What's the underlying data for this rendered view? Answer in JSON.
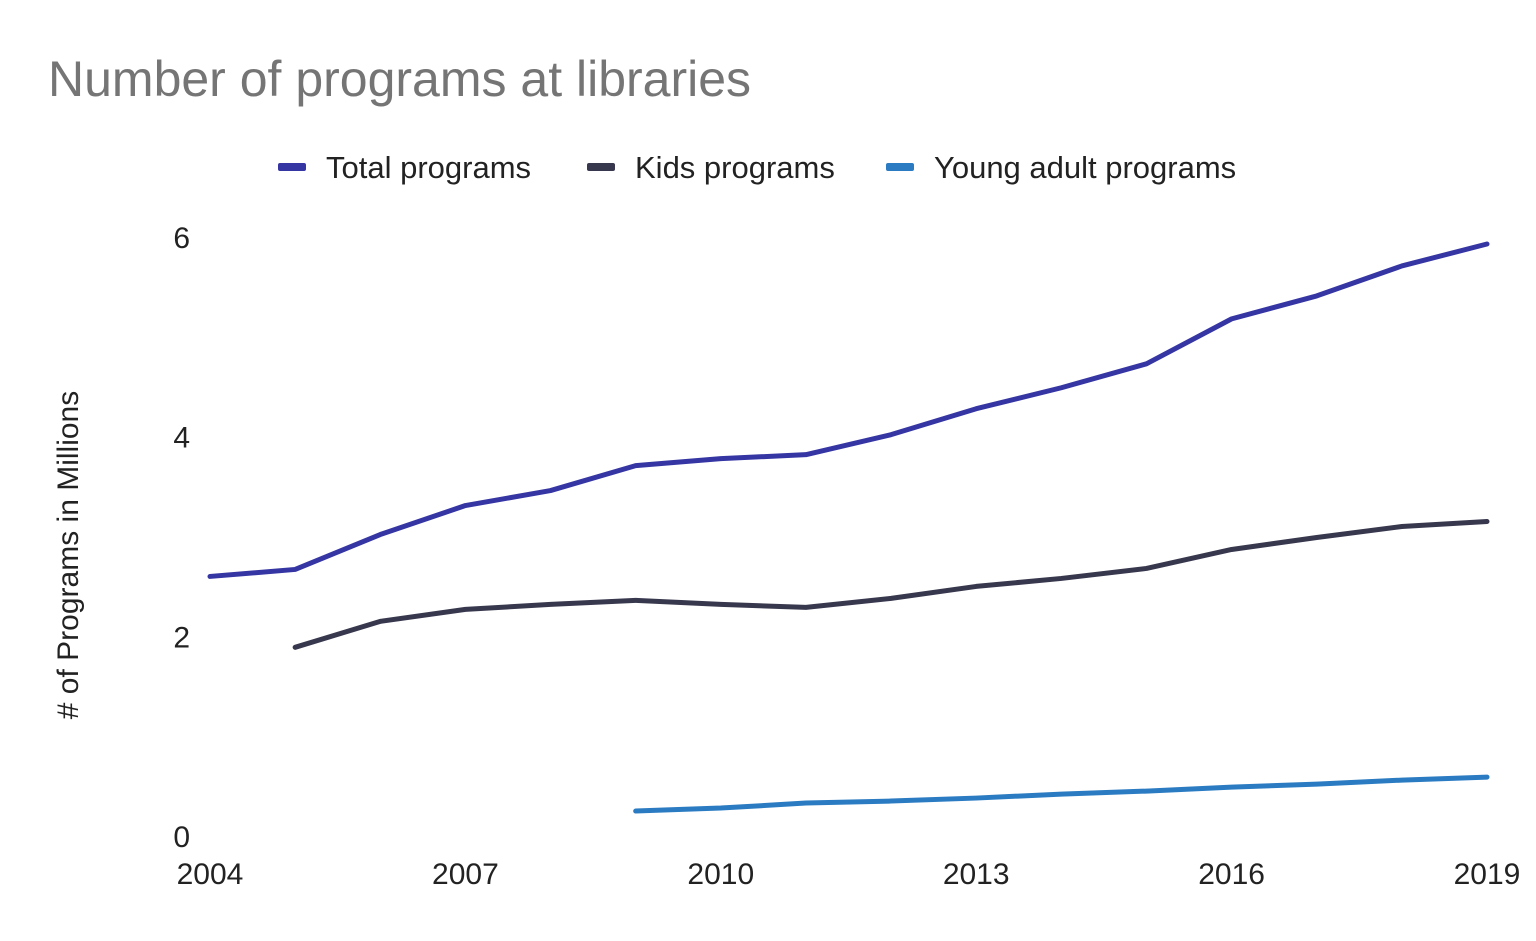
{
  "chart_data": {
    "type": "line",
    "title": "Number of programs at libraries",
    "xlabel": "",
    "ylabel": "# of Programs in Millions",
    "xlim": [
      2004,
      2019
    ],
    "ylim": [
      0,
      6
    ],
    "x_ticks": [
      2004,
      2007,
      2010,
      2013,
      2016,
      2019
    ],
    "y_ticks": [
      0,
      2,
      4,
      6
    ],
    "grid": false,
    "legend_position": "top",
    "series": [
      {
        "name": "Total programs",
        "color": "#3535a3",
        "x": [
          2004,
          2005,
          2006,
          2007,
          2008,
          2009,
          2010,
          2011,
          2012,
          2013,
          2014,
          2015,
          2016,
          2017,
          2018,
          2019
        ],
        "values": [
          2.6,
          2.67,
          3.02,
          3.31,
          3.46,
          3.71,
          3.78,
          3.82,
          4.02,
          4.28,
          4.49,
          4.73,
          5.18,
          5.41,
          5.71,
          5.93
        ]
      },
      {
        "name": "Kids programs",
        "color": "#37374d",
        "x": [
          2005,
          2006,
          2007,
          2008,
          2009,
          2010,
          2011,
          2012,
          2013,
          2014,
          2015,
          2016,
          2017,
          2018,
          2019
        ],
        "values": [
          1.89,
          2.15,
          2.27,
          2.32,
          2.36,
          2.32,
          2.29,
          2.38,
          2.5,
          2.58,
          2.68,
          2.87,
          2.99,
          3.1,
          3.15
        ]
      },
      {
        "name": "Young adult programs",
        "color": "#2a7bc2",
        "x": [
          2009,
          2010,
          2011,
          2012,
          2013,
          2014,
          2015,
          2016,
          2017,
          2018,
          2019
        ],
        "values": [
          0.25,
          0.28,
          0.33,
          0.35,
          0.38,
          0.42,
          0.45,
          0.49,
          0.52,
          0.56,
          0.59
        ]
      }
    ]
  }
}
